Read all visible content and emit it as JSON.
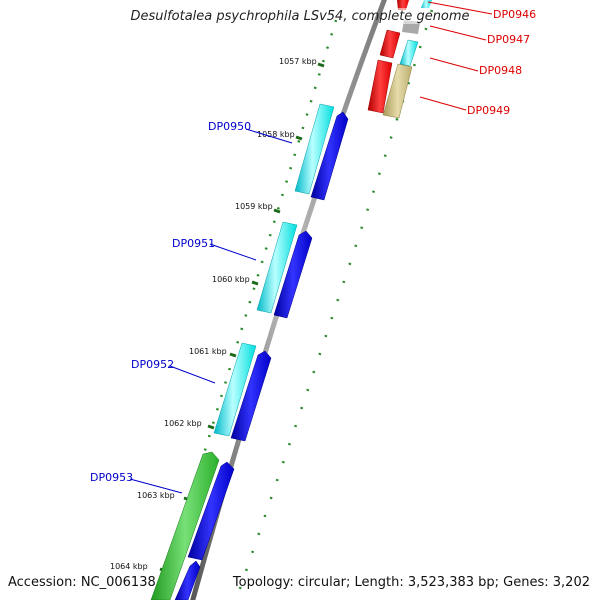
{
  "title": "Desulfotalea psychrophila LSv54, complete genome",
  "footer": {
    "accession": "Accession: NC_006138",
    "stats": "Topology: circular; Length: 3,523,383 bp; Genes: 3,202"
  },
  "colors": {
    "forward_strand": "#00f0f0",
    "reverse_strand": "#0000dd",
    "red_genes": "#ee0000",
    "khaki_gene": "#c8b878",
    "green_gene": "#33bb33",
    "ticks": "#228822",
    "backbone": "#8a8a8a",
    "label_left": "#0000cc",
    "label_right": "#dd0000"
  },
  "tick_labels": [
    "1057 kbp",
    "1058 kbp",
    "1059 kbp",
    "1060 kbp",
    "1061 kbp",
    "1062 kbp",
    "1063 kbp",
    "1064 kbp"
  ],
  "genes_left": [
    {
      "id": "DP0950",
      "color": "cyan"
    },
    {
      "id": "DP0951",
      "color": "cyan"
    },
    {
      "id": "DP0952",
      "color": "cyan"
    },
    {
      "id": "DP0953",
      "color": "green"
    }
  ],
  "genes_right": [
    {
      "id": "DP0946",
      "color": "red"
    },
    {
      "id": "DP0947",
      "color": "red"
    },
    {
      "id": "DP0948",
      "color": "red"
    },
    {
      "id": "DP0949",
      "color": "khaki"
    }
  ]
}
